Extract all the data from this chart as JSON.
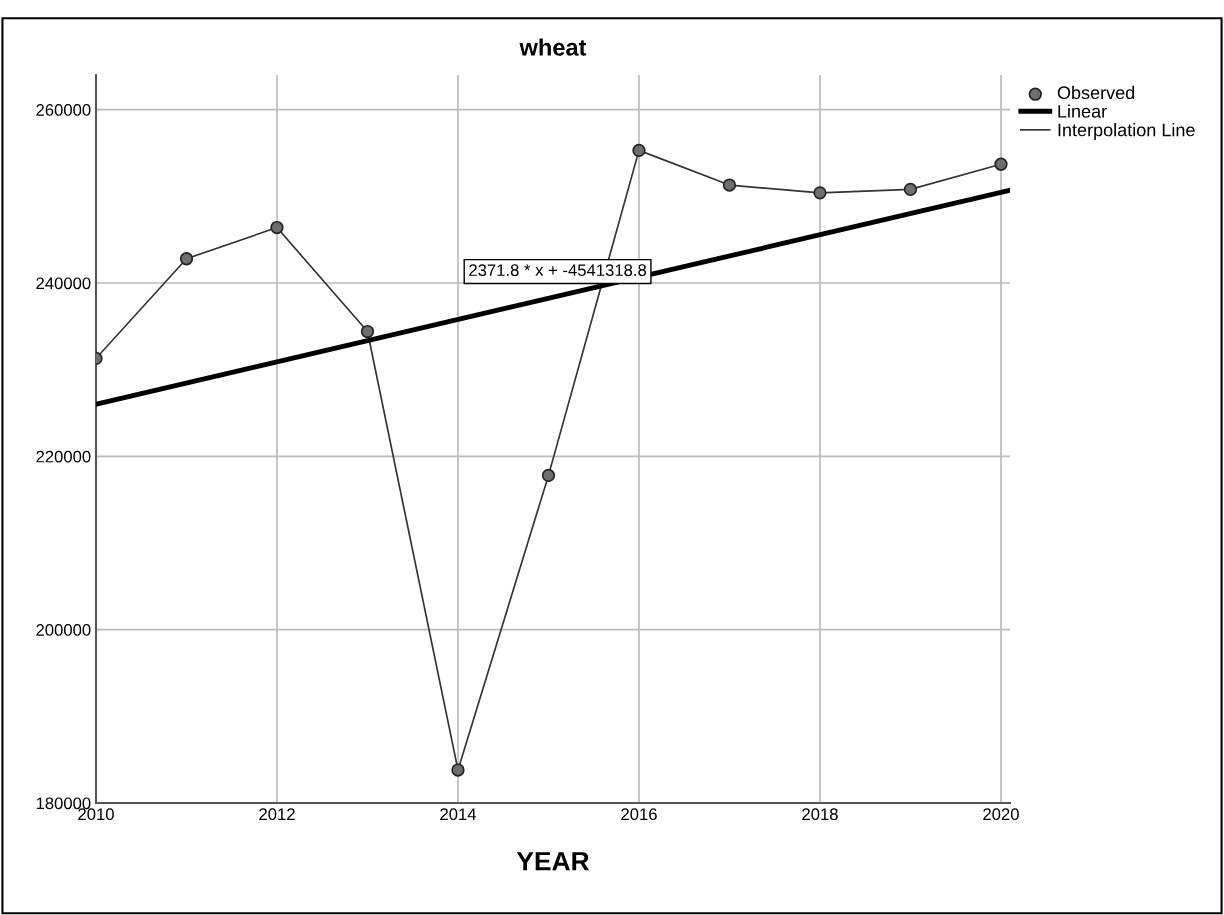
{
  "chart_data": {
    "type": "line",
    "title": "wheat",
    "xlabel": "YEAR",
    "x": [
      2010,
      2011,
      2012,
      2013,
      2014,
      2015,
      2016,
      2017,
      2018,
      2019,
      2020
    ],
    "series": [
      {
        "name": "Observed",
        "type": "scatter",
        "color": "#6e6e6e",
        "marker": "circle",
        "values": [
          231300,
          242800,
          246400,
          234400,
          183800,
          217800,
          255300,
          251300,
          250400,
          250800,
          253700
        ]
      },
      {
        "name": "Linear",
        "type": "line",
        "color": "#000000",
        "x": [
          2010,
          2020.1
        ],
        "values": [
          226000,
          250700
        ]
      },
      {
        "name": "Interpolation Line",
        "color": "#333333",
        "values": [
          231300,
          242800,
          246400,
          234400,
          183800,
          217800,
          255300,
          251300,
          250400,
          250800,
          253700
        ]
      }
    ],
    "annotations": [
      "2371.8 * x + -4541318.8"
    ],
    "xlim": [
      2010,
      2020.1
    ],
    "xticks": [
      2010,
      2012,
      2014,
      2016,
      2018,
      2020
    ],
    "ylim": [
      180000,
      264000
    ],
    "yticks": [
      180000,
      200000,
      220000,
      240000,
      260000
    ],
    "grid": true,
    "legend": "top right"
  }
}
